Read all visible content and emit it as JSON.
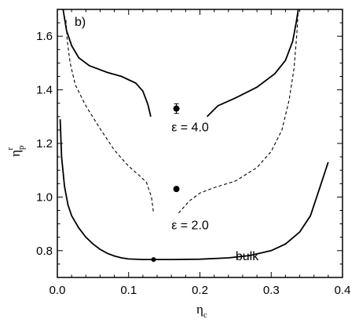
{
  "chart_data": {
    "type": "line",
    "panel_label": "b)",
    "xlabel": "η",
    "xlabel_sub": "c",
    "ylabel": "η",
    "ylabel_sub": "p",
    "ylabel_sup": "r",
    "xlim": [
      0.0,
      0.4
    ],
    "ylim": [
      0.7,
      1.7
    ],
    "x_ticks": [
      "0.0",
      "0.1",
      "0.2",
      "0.3",
      "0.4"
    ],
    "y_ticks": [
      "0.8",
      "1.0",
      "1.2",
      "1.4",
      "1.6"
    ],
    "grid": false,
    "series": [
      {
        "style": "solid",
        "points": [
          [
            0.004,
            1.29
          ],
          [
            0.006,
            1.15
          ],
          [
            0.01,
            1.04
          ],
          [
            0.015,
            0.97
          ],
          [
            0.02,
            0.93
          ],
          [
            0.03,
            0.885
          ],
          [
            0.04,
            0.85
          ],
          [
            0.05,
            0.825
          ],
          [
            0.06,
            0.805
          ],
          [
            0.07,
            0.79
          ],
          [
            0.08,
            0.78
          ],
          [
            0.09,
            0.773
          ],
          [
            0.1,
            0.769
          ],
          [
            0.12,
            0.767
          ],
          [
            0.135,
            0.767
          ],
          [
            0.16,
            0.767
          ],
          [
            0.2,
            0.768
          ],
          [
            0.24,
            0.773
          ],
          [
            0.27,
            0.782
          ],
          [
            0.3,
            0.8
          ],
          [
            0.32,
            0.825
          ],
          [
            0.34,
            0.87
          ],
          [
            0.355,
            0.93
          ],
          [
            0.37,
            1.05
          ],
          [
            0.38,
            1.13
          ]
        ]
      },
      {
        "style": "dashed",
        "points": [
          [
            0.012,
            1.66
          ],
          [
            0.014,
            1.58
          ],
          [
            0.018,
            1.5
          ],
          [
            0.025,
            1.42
          ],
          [
            0.04,
            1.34
          ],
          [
            0.06,
            1.255
          ],
          [
            0.08,
            1.175
          ],
          [
            0.1,
            1.115
          ],
          [
            0.115,
            1.08
          ],
          [
            0.125,
            1.055
          ],
          [
            0.132,
            1.0
          ],
          [
            0.135,
            0.94
          ]
        ]
      },
      {
        "style": "dashed",
        "points": [
          [
            0.17,
            0.94
          ],
          [
            0.185,
            0.985
          ],
          [
            0.2,
            1.015
          ],
          [
            0.22,
            1.035
          ],
          [
            0.25,
            1.06
          ],
          [
            0.28,
            1.11
          ],
          [
            0.3,
            1.17
          ],
          [
            0.315,
            1.25
          ],
          [
            0.325,
            1.36
          ],
          [
            0.332,
            1.48
          ],
          [
            0.336,
            1.61
          ],
          [
            0.338,
            1.7
          ]
        ]
      },
      {
        "style": "solid",
        "points": [
          [
            0.008,
            1.7
          ],
          [
            0.013,
            1.62
          ],
          [
            0.02,
            1.565
          ],
          [
            0.03,
            1.52
          ],
          [
            0.045,
            1.49
          ],
          [
            0.07,
            1.465
          ],
          [
            0.09,
            1.45
          ],
          [
            0.11,
            1.425
          ],
          [
            0.12,
            1.395
          ],
          [
            0.127,
            1.345
          ],
          [
            0.131,
            1.3
          ]
        ]
      },
      {
        "style": "solid",
        "points": [
          [
            0.21,
            1.3
          ],
          [
            0.225,
            1.34
          ],
          [
            0.25,
            1.37
          ],
          [
            0.28,
            1.41
          ],
          [
            0.305,
            1.46
          ],
          [
            0.32,
            1.51
          ],
          [
            0.33,
            1.58
          ],
          [
            0.335,
            1.65
          ],
          [
            0.338,
            1.7
          ]
        ]
      }
    ],
    "points": [
      {
        "x": 0.135,
        "y": 0.767,
        "err": 0
      },
      {
        "x": 0.167,
        "y": 1.03,
        "err": 0
      },
      {
        "x": 0.167,
        "y": 1.33,
        "err": 0.018
      }
    ],
    "annotations": [
      {
        "text": "ε = 4.0",
        "x": 0.16,
        "y": 1.245
      },
      {
        "text": "ε = 2.0",
        "x": 0.16,
        "y": 0.88
      },
      {
        "text": "bulk",
        "x": 0.25,
        "y": 0.765
      }
    ]
  }
}
